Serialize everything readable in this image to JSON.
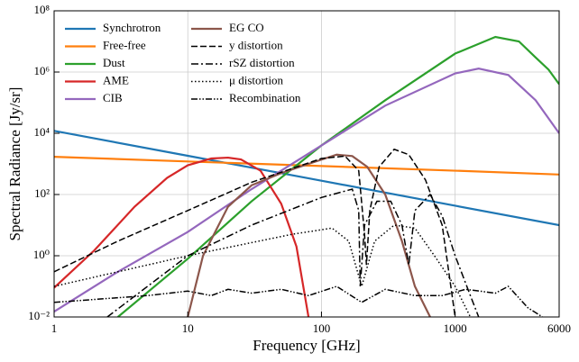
{
  "chart_data": {
    "type": "line",
    "xlabel": "Frequency [GHz]",
    "ylabel": "Spectral Radiance [Jy/sr]",
    "xscale": "log",
    "yscale": "log",
    "grid": true,
    "legend": "upper left",
    "xlim": [
      1,
      6000
    ],
    "ylim": [
      0.01,
      100000000
    ],
    "xticks": [
      1,
      10,
      100,
      1000,
      6000
    ],
    "yticks": [
      {
        "value": 0.01,
        "label": "10⁻²"
      },
      {
        "value": 1,
        "label": "10⁰"
      },
      {
        "value": 100,
        "label": "10²"
      },
      {
        "value": 10000,
        "label": "10⁴"
      },
      {
        "value": 1000000,
        "label": "10⁶"
      },
      {
        "value": 100000000,
        "label": "10⁸"
      }
    ],
    "series": [
      {
        "name": "Synchrotron",
        "color": "#1f77b4",
        "dash": "solid",
        "x": [
          1,
          10,
          100,
          1000,
          6000
        ],
        "values": [
          12000,
          1840,
          282,
          43,
          10
        ]
      },
      {
        "name": "Free-free",
        "color": "#ff7f0e",
        "dash": "solid",
        "x": [
          1,
          10,
          100,
          1000,
          6000
        ],
        "values": [
          1700,
          1200,
          850,
          600,
          450
        ]
      },
      {
        "name": "Dust",
        "color": "#2ca02c",
        "dash": "solid",
        "x": [
          3,
          10,
          30,
          100,
          300,
          1000,
          2000,
          3000,
          4000,
          5000,
          6000
        ],
        "values": [
          0.01,
          0.8,
          60,
          4000,
          120000,
          4000000,
          14000000,
          10000000,
          3000000,
          1200000,
          400000
        ]
      },
      {
        "name": "AME",
        "color": "#d62728",
        "dash": "solid",
        "x": [
          1,
          2,
          4,
          7,
          10,
          15,
          20,
          25,
          35,
          50,
          65,
          80
        ],
        "values": [
          0.09,
          1.5,
          40,
          350,
          900,
          1500,
          1600,
          1400,
          600,
          50,
          2,
          0.01
        ]
      },
      {
        "name": "CIB",
        "color": "#9467bd",
        "dash": "solid",
        "x": [
          1,
          3,
          10,
          30,
          100,
          300,
          1000,
          1500,
          2500,
          4000,
          6000
        ],
        "values": [
          0.015,
          0.3,
          6,
          150,
          4000,
          80000,
          900000,
          1300000,
          800000,
          120000,
          10000
        ]
      },
      {
        "name": "EG CO",
        "color": "#8c564b",
        "dash": "solid",
        "x": [
          10,
          13,
          20,
          30,
          50,
          80,
          130,
          170,
          220,
          300,
          400,
          500,
          650
        ],
        "values": [
          0.01,
          1,
          40,
          200,
          500,
          1000,
          2000,
          1800,
          800,
          100,
          3,
          0.1,
          0.01
        ]
      },
      {
        "name": "y distortion",
        "color": "#000000",
        "dash": "dashed",
        "x": [
          1,
          3,
          10,
          30,
          100,
          150,
          190,
          210,
          217,
          230,
          270,
          350,
          450,
          600,
          800,
          1000
        ],
        "values": [
          0.3,
          3,
          30,
          250,
          1500,
          1800,
          600,
          5,
          0.5,
          30,
          800,
          3000,
          2000,
          300,
          10,
          0.01
        ]
      },
      {
        "name": "rSZ distortion",
        "color": "#000000",
        "dash": "dashdot",
        "x": [
          2.5,
          5,
          10,
          30,
          100,
          170,
          190,
          195,
          210,
          260,
          330,
          400,
          450,
          500,
          650,
          800,
          1000,
          1300,
          1500
        ],
        "values": [
          0.01,
          0.1,
          1,
          10,
          80,
          150,
          30,
          0.1,
          10,
          60,
          60,
          10,
          0.5,
          30,
          100,
          20,
          1,
          0.05,
          0.01
        ]
      },
      {
        "name": "μ distortion",
        "color": "#000000",
        "dash": "dotted",
        "x": [
          1,
          10,
          60,
          120,
          160,
          200,
          250,
          350,
          500,
          700,
          1000,
          1300
        ],
        "values": [
          0.1,
          1,
          5,
          8,
          3,
          0.1,
          3,
          10,
          8,
          1,
          0.1,
          0.01
        ]
      },
      {
        "name": "Recombination",
        "color": "#000000",
        "dash": "dashdotdot",
        "x": [
          1,
          5,
          10,
          15,
          20,
          30,
          50,
          80,
          130,
          200,
          300,
          500,
          800,
          1200,
          2000,
          2500,
          3500,
          4500
        ],
        "values": [
          0.03,
          0.05,
          0.07,
          0.05,
          0.08,
          0.06,
          0.08,
          0.05,
          0.1,
          0.03,
          0.08,
          0.05,
          0.05,
          0.08,
          0.06,
          0.1,
          0.02,
          0.01
        ]
      }
    ]
  }
}
